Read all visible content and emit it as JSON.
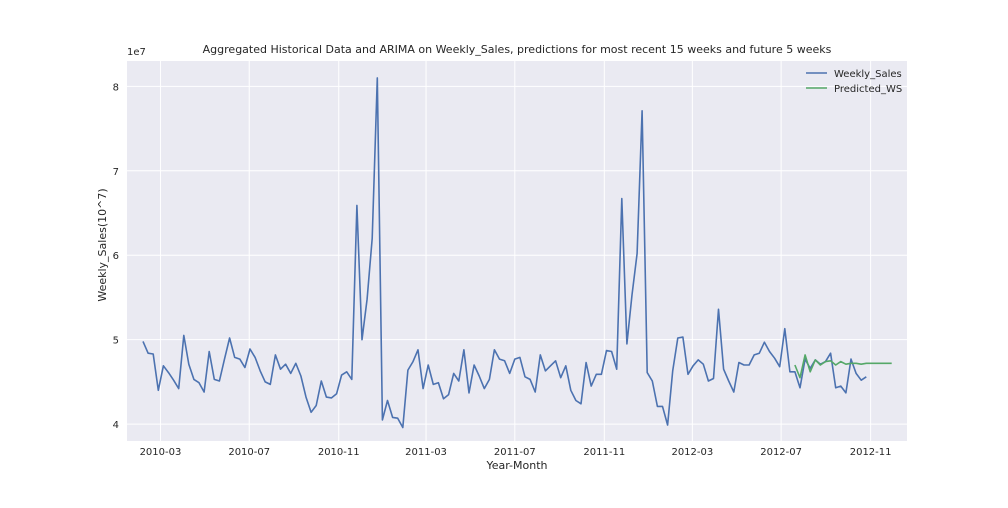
{
  "chart_data": {
    "type": "line",
    "title": "Aggregated Historical Data and ARIMA on Weekly_Sales, predictions for most recent 15 weeks and future 5 weeks",
    "xlabel": "Year-Month",
    "ylabel": "Weekly_Sales(10^7)",
    "y_offset_label": "1e7",
    "x_ticks": [
      "2010-03",
      "2010-07",
      "2010-11",
      "2011-03",
      "2011-07",
      "2011-11",
      "2012-03",
      "2012-07",
      "2012-11"
    ],
    "y_ticks": [
      "4",
      "5",
      "6",
      "7",
      "8"
    ],
    "ylim": [
      3.8,
      8.3
    ],
    "xlim": [
      "2010-01-14",
      "2012-12-21"
    ],
    "grid": true,
    "legend_position": "top-right",
    "colors": {
      "background": "#eaeaf2",
      "grid": "#ffffff",
      "series1": "#4c72b0",
      "series2": "#55a868"
    },
    "series": [
      {
        "name": "Weekly_Sales",
        "x": [
          "2010-02-05",
          "2010-02-12",
          "2010-02-19",
          "2010-02-26",
          "2010-03-05",
          "2010-03-12",
          "2010-03-19",
          "2010-03-26",
          "2010-04-02",
          "2010-04-09",
          "2010-04-16",
          "2010-04-23",
          "2010-04-30",
          "2010-05-07",
          "2010-05-14",
          "2010-05-21",
          "2010-05-28",
          "2010-06-04",
          "2010-06-11",
          "2010-06-18",
          "2010-06-25",
          "2010-07-02",
          "2010-07-09",
          "2010-07-16",
          "2010-07-23",
          "2010-07-30",
          "2010-08-06",
          "2010-08-13",
          "2010-08-20",
          "2010-08-27",
          "2010-09-03",
          "2010-09-10",
          "2010-09-17",
          "2010-09-24",
          "2010-10-01",
          "2010-10-08",
          "2010-10-15",
          "2010-10-22",
          "2010-10-29",
          "2010-11-05",
          "2010-11-12",
          "2010-11-19",
          "2010-11-26",
          "2010-12-03",
          "2010-12-10",
          "2010-12-17",
          "2010-12-24",
          "2010-12-31",
          "2011-01-07",
          "2011-01-14",
          "2011-01-21",
          "2011-01-28",
          "2011-02-04",
          "2011-02-11",
          "2011-02-18",
          "2011-02-25",
          "2011-03-04",
          "2011-03-11",
          "2011-03-18",
          "2011-03-25",
          "2011-04-01",
          "2011-04-08",
          "2011-04-15",
          "2011-04-22",
          "2011-04-29",
          "2011-05-06",
          "2011-05-13",
          "2011-05-20",
          "2011-05-27",
          "2011-06-03",
          "2011-06-10",
          "2011-06-17",
          "2011-06-24",
          "2011-07-01",
          "2011-07-08",
          "2011-07-15",
          "2011-07-22",
          "2011-07-29",
          "2011-08-05",
          "2011-08-12",
          "2011-08-19",
          "2011-08-26",
          "2011-09-02",
          "2011-09-09",
          "2011-09-16",
          "2011-09-23",
          "2011-09-30",
          "2011-10-07",
          "2011-10-14",
          "2011-10-21",
          "2011-10-28",
          "2011-11-04",
          "2011-11-11",
          "2011-11-18",
          "2011-11-25",
          "2011-12-02",
          "2011-12-09",
          "2011-12-16",
          "2011-12-23",
          "2011-12-30",
          "2012-01-06",
          "2012-01-13",
          "2012-01-20",
          "2012-01-27",
          "2012-02-03",
          "2012-02-10",
          "2012-02-17",
          "2012-02-24",
          "2012-03-02",
          "2012-03-09",
          "2012-03-16",
          "2012-03-23",
          "2012-03-30",
          "2012-04-06",
          "2012-04-13",
          "2012-04-20",
          "2012-04-27",
          "2012-05-04",
          "2012-05-11",
          "2012-05-18",
          "2012-05-25",
          "2012-06-01",
          "2012-06-08",
          "2012-06-15",
          "2012-06-22",
          "2012-06-29",
          "2012-07-06",
          "2012-07-13",
          "2012-07-20",
          "2012-07-27",
          "2012-08-03",
          "2012-08-10",
          "2012-08-17",
          "2012-08-24",
          "2012-08-31",
          "2012-09-07",
          "2012-09-14",
          "2012-09-21",
          "2012-09-28",
          "2012-10-05",
          "2012-10-12",
          "2012-10-19",
          "2012-10-26"
        ],
        "values": [
          4.98,
          4.84,
          4.83,
          4.4,
          4.69,
          4.61,
          4.52,
          4.42,
          5.05,
          4.71,
          4.53,
          4.49,
          4.38,
          4.86,
          4.53,
          4.51,
          4.77,
          5.02,
          4.79,
          4.77,
          4.67,
          4.89,
          4.79,
          4.63,
          4.5,
          4.47,
          4.82,
          4.65,
          4.71,
          4.6,
          4.72,
          4.57,
          4.32,
          4.14,
          4.22,
          4.51,
          4.32,
          4.31,
          4.36,
          4.58,
          4.62,
          4.53,
          6.59,
          5.0,
          5.48,
          6.2,
          8.1,
          4.05,
          4.28,
          4.08,
          4.07,
          3.96,
          4.64,
          4.74,
          4.88,
          4.42,
          4.7,
          4.47,
          4.49,
          4.3,
          4.35,
          4.6,
          4.51,
          4.88,
          4.37,
          4.7,
          4.57,
          4.42,
          4.53,
          4.88,
          4.77,
          4.75,
          4.6,
          4.77,
          4.79,
          4.56,
          4.53,
          4.38,
          4.82,
          4.63,
          4.69,
          4.75,
          4.55,
          4.69,
          4.4,
          4.28,
          4.24,
          4.73,
          4.45,
          4.59,
          4.59,
          4.87,
          4.86,
          4.65,
          6.67,
          4.95,
          5.53,
          6.02,
          7.71,
          4.61,
          4.51,
          4.21,
          4.21,
          3.99,
          4.63,
          5.02,
          5.03,
          4.59,
          4.69,
          4.76,
          4.71,
          4.51,
          4.54,
          5.36,
          4.65,
          4.51,
          4.38,
          4.73,
          4.7,
          4.7,
          4.82,
          4.84,
          4.97,
          4.86,
          4.78,
          4.68,
          5.13,
          4.62,
          4.62,
          4.43,
          4.77,
          4.66,
          4.76,
          4.71,
          4.74,
          4.84,
          4.43,
          4.45,
          4.37,
          4.77,
          4.6,
          4.52,
          4.56
        ]
      },
      {
        "name": "Predicted_WS",
        "x": [
          "2012-07-20",
          "2012-07-27",
          "2012-08-03",
          "2012-08-10",
          "2012-08-17",
          "2012-08-24",
          "2012-08-31",
          "2012-09-07",
          "2012-09-14",
          "2012-09-21",
          "2012-09-28",
          "2012-10-05",
          "2012-10-12",
          "2012-10-19",
          "2012-10-26",
          "2012-11-02",
          "2012-11-09",
          "2012-11-16",
          "2012-11-23",
          "2012-11-30"
        ],
        "values": [
          4.7,
          4.55,
          4.82,
          4.62,
          4.76,
          4.7,
          4.74,
          4.75,
          4.7,
          4.74,
          4.71,
          4.72,
          4.72,
          4.71,
          4.72,
          4.72,
          4.72,
          4.72,
          4.72,
          4.72
        ]
      }
    ]
  }
}
